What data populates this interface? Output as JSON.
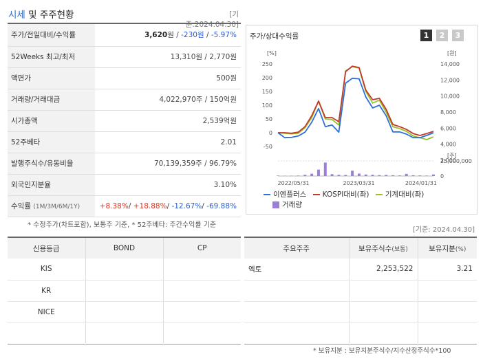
{
  "header": {
    "title_accent": "시세",
    "title_rest": " 및 주주현황",
    "date": "[기준:2024.04.30]"
  },
  "price_table": [
    {
      "label": "주가/전일대비/수익률",
      "price": "3,620",
      "price_unit": "원",
      "sep1": " / ",
      "change": "-230원",
      "sep2": " / ",
      "rate": "-5.97%"
    },
    {
      "label": "52Weeks 최고/최저",
      "value": "13,310원 / 2,770원"
    },
    {
      "label": "액면가",
      "value": "500원"
    },
    {
      "label": "거래량/거래대금",
      "value": "4,022,970주 / 150억원"
    },
    {
      "label": "시가총액",
      "value": "2,539억원"
    },
    {
      "label": "52주베타",
      "value": "2.01"
    },
    {
      "label": "발행주식수/유동비율",
      "value": "70,139,359주 / 96.79%"
    },
    {
      "label": "외국인지분율",
      "value": "3.10%"
    },
    {
      "label": "수익률",
      "label_sub": "(1M/3M/6M/1Y)",
      "r1": "+8.38%",
      "r2": "+18.88%",
      "r3": "-12.67%",
      "r4": "-69.88%",
      "slash": "/ "
    }
  ],
  "price_note": "* 수정주가(차트포함), 보통주 기준, * 52주베타: 주간수익률 기준",
  "chart": {
    "title": "주가/상대수익률",
    "buttons": [
      "1",
      "2",
      "3"
    ],
    "left_unit": "[%]",
    "right_unit": "[원]",
    "right_unit2": "[주]",
    "legend": [
      "이엔플러스",
      "KOSPI대비(좌)",
      "기계대비(좌)",
      "거래량"
    ],
    "colors": {
      "company": "#2f6fd6",
      "kospi": "#c0392b",
      "machine": "#9bbf2a",
      "volume": "#9b7fd6"
    }
  },
  "chart_data": {
    "type": "line",
    "x_tick_labels": [
      "2022/05/31",
      "2023/03/31",
      "2024/01/31"
    ],
    "y_left_ticks": [
      250,
      200,
      150,
      100,
      50,
      0,
      -50
    ],
    "y_right_ticks": [
      "14,000",
      "12,000",
      "10,000",
      "8,000",
      "6,000",
      "4,000",
      "2,000"
    ],
    "volume_ticks": [
      "25,000,000",
      "0"
    ],
    "ylim_left": [
      -50,
      250
    ],
    "ylim_right": [
      2000,
      14000
    ],
    "series": [
      {
        "name": "이엔플러스",
        "axis": "left",
        "values": [
          0,
          -18,
          -17,
          -12,
          2,
          38,
          88,
          22,
          28,
          2,
          180,
          198,
          196,
          130,
          90,
          100,
          62,
          3,
          3,
          -5,
          -18,
          -18,
          -10,
          0
        ]
      },
      {
        "name": "KOSPI대비(좌)",
        "axis": "left",
        "values": [
          0,
          0,
          -2,
          2,
          22,
          62,
          115,
          55,
          55,
          40,
          222,
          242,
          237,
          155,
          120,
          125,
          85,
          30,
          22,
          12,
          -3,
          -10,
          -3,
          5
        ]
      },
      {
        "name": "기계대비(좌)",
        "axis": "left",
        "values": [
          0,
          -2,
          -4,
          -2,
          18,
          55,
          115,
          50,
          48,
          28,
          225,
          240,
          235,
          150,
          108,
          118,
          75,
          22,
          15,
          5,
          -12,
          -18,
          -25,
          -15
        ]
      }
    ],
    "volume_values": [
      0.3,
      0.2,
      0.2,
      0.3,
      0.8,
      1.5,
      4.2,
      8.8,
      1.2,
      0.8,
      0.7,
      3.5,
      1.6,
      1.0,
      0.8,
      0.6,
      0.7,
      0.5,
      0.4,
      1.4,
      0.5,
      0.4,
      0.3,
      1.0
    ]
  },
  "date2": "[기준: 2024.04.30]",
  "credit": {
    "headers": [
      "신용등급",
      "BOND",
      "CP"
    ],
    "rows": [
      [
        "KIS",
        "",
        ""
      ],
      [
        "KR",
        "",
        ""
      ],
      [
        "NICE",
        "",
        ""
      ],
      [
        "",
        "",
        ""
      ]
    ]
  },
  "holders": {
    "headers": [
      "주요주주",
      "보유주식수",
      "(보통)",
      "보유지분",
      "(%)"
    ],
    "rows": [
      [
        "엑토",
        "2,253,522",
        "3.21"
      ],
      [
        "",
        "",
        ""
      ],
      [
        "",
        "",
        ""
      ],
      [
        "",
        "",
        ""
      ]
    ]
  },
  "holder_note": "* 보유지분 : 보유지분주식수/지수산정주식수*100"
}
